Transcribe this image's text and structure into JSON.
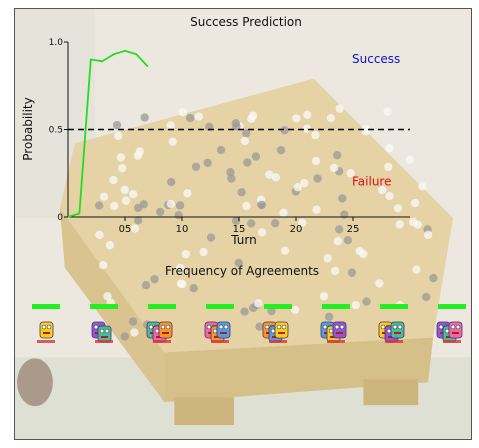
{
  "chart_data": {
    "type": "line",
    "title": "Success Prediction",
    "xlabel": "Turn",
    "ylabel": "Probability",
    "xlim": [
      0,
      30
    ],
    "ylim": [
      0,
      1.0
    ],
    "x_tick_labels": [
      {
        "value": 5,
        "label": "05"
      },
      {
        "value": 10,
        "label": "10"
      },
      {
        "value": 15,
        "label": "15"
      },
      {
        "value": 20,
        "label": "20"
      },
      {
        "value": 25,
        "label": "25"
      }
    ],
    "y_tick_labels": [
      {
        "value": 0,
        "label": "0"
      },
      {
        "value": 0.5,
        "label": "0.5"
      },
      {
        "value": 1.0,
        "label": "1.0"
      }
    ],
    "threshold": {
      "value": 0.5,
      "style": "dashed"
    },
    "series": [
      {
        "color": "#22dd22",
        "x": [
          0,
          1,
          2,
          3,
          4,
          5,
          6,
          7
        ],
        "y": [
          0.0,
          0.02,
          0.9,
          0.89,
          0.93,
          0.95,
          0.93,
          0.86
        ]
      }
    ],
    "annotations": [
      {
        "text": "Success",
        "color": "#1010cc",
        "y": 0.88
      },
      {
        "text": "Failure",
        "color": "#dd1111",
        "y": 0.18
      }
    ]
  },
  "agreements": {
    "title": "Frequency of Agreements",
    "bar_color": "#22ee22",
    "columns": [
      {
        "agreement": 1.0,
        "members": 1
      },
      {
        "agreement": 1.0,
        "members": 2
      },
      {
        "agreement": 1.0,
        "members": 3
      },
      {
        "agreement": 1.0,
        "members": 3
      },
      {
        "agreement": 1.0,
        "members": 3
      },
      {
        "agreement": 1.0,
        "members": 3
      },
      {
        "agreement": 1.0,
        "members": 3
      },
      {
        "agreement": 1.0,
        "members": 3
      }
    ]
  }
}
